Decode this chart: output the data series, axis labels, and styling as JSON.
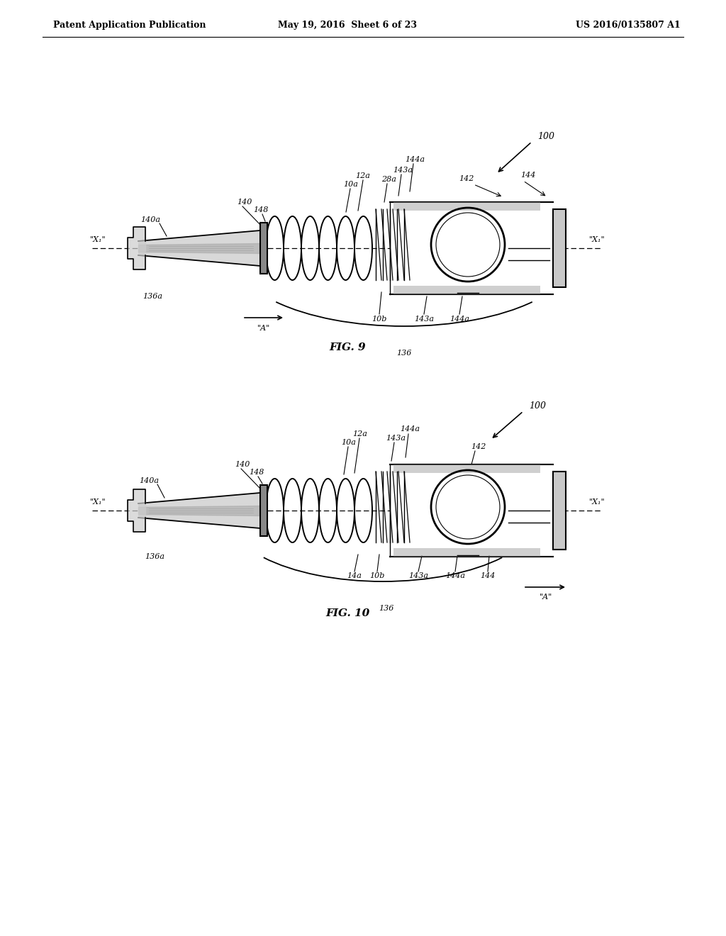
{
  "background_color": "#ffffff",
  "header_left": "Patent Application Publication",
  "header_mid": "May 19, 2016  Sheet 6 of 23",
  "header_right": "US 2016/0135807 A1",
  "fig9_label": "FIG. 9",
  "fig10_label": "FIG. 10",
  "line_color": "#000000",
  "text_color": "#000000",
  "light_gray": "#c8c8c8",
  "mid_gray": "#a0a0a0",
  "dark_gray": "#606060"
}
